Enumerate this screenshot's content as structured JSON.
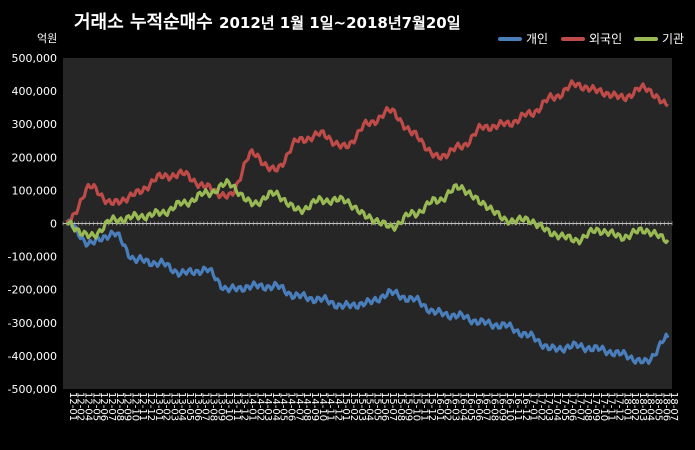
{
  "chart_data": {
    "type": "line",
    "title": "거래소  누적순매수",
    "subtitle": "2012년 1월 1일~2018년7월20일",
    "unit_label": "억원",
    "ylim": [
      -500000,
      500000
    ],
    "ytick_labels": [
      "500,000",
      "400,000",
      "300,000",
      "200,000",
      "100,000",
      "0",
      "-100,000",
      "-200,000",
      "-300,000",
      "-400,000",
      "-500,000"
    ],
    "yticks": [
      500000,
      400000,
      300000,
      200000,
      100000,
      0,
      -100000,
      -200000,
      -300000,
      -400000,
      -500000
    ],
    "xtick_labels": [
      "12-01",
      "12-02",
      "12-04",
      "12-05",
      "12-06",
      "12-07",
      "12-08",
      "12-09",
      "12-10",
      "12-11",
      "12-12",
      "13-01",
      "13-02",
      "13-03",
      "13-04",
      "13-05",
      "13-06",
      "13-07",
      "13-08",
      "13-09",
      "13-10",
      "13-11",
      "13-12",
      "14-01",
      "14-02",
      "14-03",
      "14-04",
      "14-05",
      "14-06",
      "14-07",
      "14-08",
      "14-09",
      "14-10",
      "14-11",
      "14-12",
      "15-01",
      "15-02",
      "15-03",
      "15-04",
      "15-05",
      "15-06",
      "15-07",
      "15-08",
      "15-09",
      "15-10",
      "15-11",
      "15-12",
      "16-01",
      "16-02",
      "16-03",
      "16-04",
      "16-05",
      "16-06",
      "16-07",
      "16-08",
      "16-09",
      "16-10",
      "16-11",
      "16-12",
      "17-01",
      "17-02",
      "17-03",
      "17-04",
      "17-05",
      "17-06",
      "17-07",
      "17-08",
      "17-09",
      "17-10",
      "17-11",
      "17-12",
      "18-01",
      "18-02",
      "18-03",
      "18-04",
      "18-05",
      "18-06",
      "18-07"
    ],
    "grid": false,
    "legend_position": "top-right",
    "x": [
      "2012-01",
      "2012-04",
      "2012-07",
      "2012-10",
      "2013-01",
      "2013-04",
      "2013-07",
      "2013-10",
      "2014-01",
      "2014-04",
      "2014-07",
      "2014-10",
      "2015-01",
      "2015-04",
      "2015-07",
      "2015-10",
      "2016-01",
      "2016-04",
      "2016-07",
      "2016-10",
      "2017-01",
      "2017-04",
      "2017-07",
      "2017-10",
      "2018-01",
      "2018-04",
      "2018-07"
    ],
    "series": [
      {
        "name": "개인",
        "color": "#4a7ebb",
        "values": [
          0,
          -60000,
          -30000,
          -110000,
          -120000,
          -150000,
          -140000,
          -200000,
          -190000,
          -190000,
          -220000,
          -230000,
          -250000,
          -240000,
          -210000,
          -230000,
          -270000,
          -280000,
          -300000,
          -310000,
          -340000,
          -380000,
          -370000,
          -380000,
          -395000,
          -420000,
          -345000
        ]
      },
      {
        "name": "외국인",
        "color": "#be4b48",
        "values": [
          0,
          110000,
          60000,
          90000,
          140000,
          150000,
          110000,
          80000,
          210000,
          160000,
          250000,
          270000,
          230000,
          300000,
          340000,
          270000,
          200000,
          230000,
          290000,
          300000,
          330000,
          380000,
          420000,
          400000,
          380000,
          410000,
          355000
        ]
      },
      {
        "name": "기관",
        "color": "#98b954",
        "values": [
          0,
          -40000,
          10000,
          20000,
          30000,
          60000,
          90000,
          120000,
          60000,
          90000,
          40000,
          70000,
          70000,
          20000,
          -10000,
          30000,
          70000,
          110000,
          60000,
          10000,
          10000,
          -30000,
          -50000,
          -20000,
          -40000,
          -20000,
          -50000
        ]
      }
    ]
  }
}
